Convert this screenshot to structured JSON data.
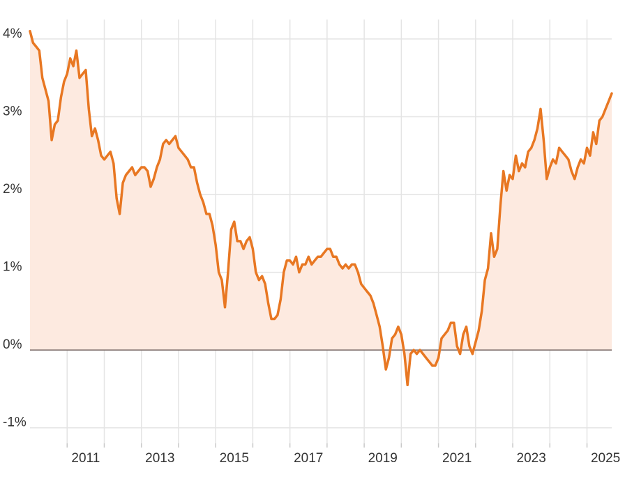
{
  "chart_data": {
    "type": "area",
    "title": "",
    "xlabel": "",
    "ylabel": "",
    "x_ticks": [
      "2011",
      "2013",
      "2015",
      "2017",
      "2019",
      "2021",
      "2023",
      "2025"
    ],
    "y_ticks": [
      "4%",
      "3%",
      "2%",
      "1%",
      "0%",
      "-1%"
    ],
    "y_tick_values": [
      4,
      3,
      2,
      1,
      0,
      -1
    ],
    "xlim": [
      "2010-01",
      "2025-09"
    ],
    "ylim": [
      -1.2,
      4.25
    ],
    "grid": true,
    "legend": "none",
    "colors": {
      "line": "#E87722",
      "fill": "#FDEAE0",
      "grid": "#E4E4E4",
      "zero_line": "#7A6A66"
    },
    "series": [
      {
        "values": [
          {
            "x": "2010-01",
            "y": 4.1
          },
          {
            "x": "2010-02",
            "y": 3.95
          },
          {
            "x": "2010-03",
            "y": 3.9
          },
          {
            "x": "2010-04",
            "y": 3.85
          },
          {
            "x": "2010-05",
            "y": 3.5
          },
          {
            "x": "2010-06",
            "y": 3.35
          },
          {
            "x": "2010-07",
            "y": 3.2
          },
          {
            "x": "2010-08",
            "y": 2.7
          },
          {
            "x": "2010-09",
            "y": 2.9
          },
          {
            "x": "2010-10",
            "y": 2.95
          },
          {
            "x": "2010-11",
            "y": 3.25
          },
          {
            "x": "2010-12",
            "y": 3.45
          },
          {
            "x": "2011-01",
            "y": 3.55
          },
          {
            "x": "2011-02",
            "y": 3.75
          },
          {
            "x": "2011-03",
            "y": 3.65
          },
          {
            "x": "2011-04",
            "y": 3.85
          },
          {
            "x": "2011-05",
            "y": 3.5
          },
          {
            "x": "2011-06",
            "y": 3.55
          },
          {
            "x": "2011-07",
            "y": 3.6
          },
          {
            "x": "2011-08",
            "y": 3.1
          },
          {
            "x": "2011-09",
            "y": 2.75
          },
          {
            "x": "2011-10",
            "y": 2.85
          },
          {
            "x": "2011-11",
            "y": 2.7
          },
          {
            "x": "2011-12",
            "y": 2.5
          },
          {
            "x": "2012-01",
            "y": 2.45
          },
          {
            "x": "2012-02",
            "y": 2.5
          },
          {
            "x": "2012-03",
            "y": 2.55
          },
          {
            "x": "2012-04",
            "y": 2.4
          },
          {
            "x": "2012-05",
            "y": 1.95
          },
          {
            "x": "2012-06",
            "y": 1.75
          },
          {
            "x": "2012-07",
            "y": 2.15
          },
          {
            "x": "2012-08",
            "y": 2.25
          },
          {
            "x": "2012-09",
            "y": 2.3
          },
          {
            "x": "2012-10",
            "y": 2.35
          },
          {
            "x": "2012-11",
            "y": 2.25
          },
          {
            "x": "2012-12",
            "y": 2.3
          },
          {
            "x": "2013-01",
            "y": 2.35
          },
          {
            "x": "2013-02",
            "y": 2.35
          },
          {
            "x": "2013-03",
            "y": 2.3
          },
          {
            "x": "2013-04",
            "y": 2.1
          },
          {
            "x": "2013-05",
            "y": 2.2
          },
          {
            "x": "2013-06",
            "y": 2.35
          },
          {
            "x": "2013-07",
            "y": 2.45
          },
          {
            "x": "2013-08",
            "y": 2.65
          },
          {
            "x": "2013-09",
            "y": 2.7
          },
          {
            "x": "2013-10",
            "y": 2.65
          },
          {
            "x": "2013-11",
            "y": 2.7
          },
          {
            "x": "2013-12",
            "y": 2.75
          },
          {
            "x": "2014-01",
            "y": 2.6
          },
          {
            "x": "2014-02",
            "y": 2.55
          },
          {
            "x": "2014-03",
            "y": 2.5
          },
          {
            "x": "2014-04",
            "y": 2.45
          },
          {
            "x": "2014-05",
            "y": 2.35
          },
          {
            "x": "2014-06",
            "y": 2.35
          },
          {
            "x": "2014-07",
            "y": 2.15
          },
          {
            "x": "2014-08",
            "y": 2.0
          },
          {
            "x": "2014-09",
            "y": 1.9
          },
          {
            "x": "2014-10",
            "y": 1.75
          },
          {
            "x": "2014-11",
            "y": 1.75
          },
          {
            "x": "2014-12",
            "y": 1.6
          },
          {
            "x": "2015-01",
            "y": 1.35
          },
          {
            "x": "2015-02",
            "y": 1.0
          },
          {
            "x": "2015-03",
            "y": 0.9
          },
          {
            "x": "2015-04",
            "y": 0.55
          },
          {
            "x": "2015-05",
            "y": 1.0
          },
          {
            "x": "2015-06",
            "y": 1.55
          },
          {
            "x": "2015-07",
            "y": 1.65
          },
          {
            "x": "2015-08",
            "y": 1.4
          },
          {
            "x": "2015-09",
            "y": 1.4
          },
          {
            "x": "2015-10",
            "y": 1.3
          },
          {
            "x": "2015-11",
            "y": 1.4
          },
          {
            "x": "2015-12",
            "y": 1.45
          },
          {
            "x": "2016-01",
            "y": 1.3
          },
          {
            "x": "2016-02",
            "y": 1.0
          },
          {
            "x": "2016-03",
            "y": 0.9
          },
          {
            "x": "2016-04",
            "y": 0.95
          },
          {
            "x": "2016-05",
            "y": 0.85
          },
          {
            "x": "2016-06",
            "y": 0.6
          },
          {
            "x": "2016-07",
            "y": 0.4
          },
          {
            "x": "2016-08",
            "y": 0.4
          },
          {
            "x": "2016-09",
            "y": 0.45
          },
          {
            "x": "2016-10",
            "y": 0.65
          },
          {
            "x": "2016-11",
            "y": 1.0
          },
          {
            "x": "2016-12",
            "y": 1.15
          },
          {
            "x": "2017-01",
            "y": 1.15
          },
          {
            "x": "2017-02",
            "y": 1.1
          },
          {
            "x": "2017-03",
            "y": 1.2
          },
          {
            "x": "2017-04",
            "y": 1.0
          },
          {
            "x": "2017-05",
            "y": 1.1
          },
          {
            "x": "2017-06",
            "y": 1.1
          },
          {
            "x": "2017-07",
            "y": 1.2
          },
          {
            "x": "2017-08",
            "y": 1.1
          },
          {
            "x": "2017-09",
            "y": 1.15
          },
          {
            "x": "2017-10",
            "y": 1.2
          },
          {
            "x": "2017-11",
            "y": 1.2
          },
          {
            "x": "2017-12",
            "y": 1.25
          },
          {
            "x": "2018-01",
            "y": 1.3
          },
          {
            "x": "2018-02",
            "y": 1.3
          },
          {
            "x": "2018-03",
            "y": 1.2
          },
          {
            "x": "2018-04",
            "y": 1.2
          },
          {
            "x": "2018-05",
            "y": 1.1
          },
          {
            "x": "2018-06",
            "y": 1.05
          },
          {
            "x": "2018-07",
            "y": 1.1
          },
          {
            "x": "2018-08",
            "y": 1.05
          },
          {
            "x": "2018-09",
            "y": 1.1
          },
          {
            "x": "2018-10",
            "y": 1.1
          },
          {
            "x": "2018-11",
            "y": 1.0
          },
          {
            "x": "2018-12",
            "y": 0.85
          },
          {
            "x": "2019-01",
            "y": 0.8
          },
          {
            "x": "2019-02",
            "y": 0.75
          },
          {
            "x": "2019-03",
            "y": 0.7
          },
          {
            "x": "2019-04",
            "y": 0.6
          },
          {
            "x": "2019-05",
            "y": 0.45
          },
          {
            "x": "2019-06",
            "y": 0.3
          },
          {
            "x": "2019-07",
            "y": 0.05
          },
          {
            "x": "2019-08",
            "y": -0.25
          },
          {
            "x": "2019-09",
            "y": -0.1
          },
          {
            "x": "2019-10",
            "y": 0.15
          },
          {
            "x": "2019-11",
            "y": 0.2
          },
          {
            "x": "2019-12",
            "y": 0.3
          },
          {
            "x": "2020-01",
            "y": 0.2
          },
          {
            "x": "2020-02",
            "y": -0.05
          },
          {
            "x": "2020-03",
            "y": -0.45
          },
          {
            "x": "2020-04",
            "y": -0.05
          },
          {
            "x": "2020-05",
            "y": 0.0
          },
          {
            "x": "2020-06",
            "y": -0.05
          },
          {
            "x": "2020-07",
            "y": 0.0
          },
          {
            "x": "2020-08",
            "y": -0.05
          },
          {
            "x": "2020-09",
            "y": -0.1
          },
          {
            "x": "2020-10",
            "y": -0.15
          },
          {
            "x": "2020-11",
            "y": -0.2
          },
          {
            "x": "2020-12",
            "y": -0.2
          },
          {
            "x": "2021-01",
            "y": -0.1
          },
          {
            "x": "2021-02",
            "y": 0.15
          },
          {
            "x": "2021-03",
            "y": 0.2
          },
          {
            "x": "2021-04",
            "y": 0.25
          },
          {
            "x": "2021-05",
            "y": 0.35
          },
          {
            "x": "2021-06",
            "y": 0.35
          },
          {
            "x": "2021-07",
            "y": 0.05
          },
          {
            "x": "2021-08",
            "y": -0.05
          },
          {
            "x": "2021-09",
            "y": 0.2
          },
          {
            "x": "2021-10",
            "y": 0.3
          },
          {
            "x": "2021-11",
            "y": 0.05
          },
          {
            "x": "2021-12",
            "y": -0.05
          },
          {
            "x": "2022-01",
            "y": 0.1
          },
          {
            "x": "2022-02",
            "y": 0.25
          },
          {
            "x": "2022-03",
            "y": 0.5
          },
          {
            "x": "2022-04",
            "y": 0.9
          },
          {
            "x": "2022-05",
            "y": 1.05
          },
          {
            "x": "2022-06",
            "y": 1.5
          },
          {
            "x": "2022-07",
            "y": 1.2
          },
          {
            "x": "2022-08",
            "y": 1.3
          },
          {
            "x": "2022-09",
            "y": 1.85
          },
          {
            "x": "2022-10",
            "y": 2.3
          },
          {
            "x": "2022-11",
            "y": 2.05
          },
          {
            "x": "2022-12",
            "y": 2.25
          },
          {
            "x": "2023-01",
            "y": 2.2
          },
          {
            "x": "2023-02",
            "y": 2.5
          },
          {
            "x": "2023-03",
            "y": 2.3
          },
          {
            "x": "2023-04",
            "y": 2.4
          },
          {
            "x": "2023-05",
            "y": 2.35
          },
          {
            "x": "2023-06",
            "y": 2.55
          },
          {
            "x": "2023-07",
            "y": 2.6
          },
          {
            "x": "2023-08",
            "y": 2.7
          },
          {
            "x": "2023-09",
            "y": 2.85
          },
          {
            "x": "2023-10",
            "y": 3.1
          },
          {
            "x": "2023-11",
            "y": 2.7
          },
          {
            "x": "2023-12",
            "y": 2.2
          },
          {
            "x": "2024-01",
            "y": 2.35
          },
          {
            "x": "2024-02",
            "y": 2.45
          },
          {
            "x": "2024-03",
            "y": 2.4
          },
          {
            "x": "2024-04",
            "y": 2.6
          },
          {
            "x": "2024-05",
            "y": 2.55
          },
          {
            "x": "2024-06",
            "y": 2.5
          },
          {
            "x": "2024-07",
            "y": 2.45
          },
          {
            "x": "2024-08",
            "y": 2.3
          },
          {
            "x": "2024-09",
            "y": 2.2
          },
          {
            "x": "2024-10",
            "y": 2.35
          },
          {
            "x": "2024-11",
            "y": 2.45
          },
          {
            "x": "2024-12",
            "y": 2.4
          },
          {
            "x": "2025-01",
            "y": 2.6
          },
          {
            "x": "2025-02",
            "y": 2.5
          },
          {
            "x": "2025-03",
            "y": 2.8
          },
          {
            "x": "2025-04",
            "y": 2.65
          },
          {
            "x": "2025-05",
            "y": 2.95
          },
          {
            "x": "2025-06",
            "y": 3.0
          },
          {
            "x": "2025-07",
            "y": 3.1
          },
          {
            "x": "2025-08",
            "y": 3.2
          },
          {
            "x": "2025-09",
            "y": 3.3
          }
        ]
      }
    ]
  }
}
